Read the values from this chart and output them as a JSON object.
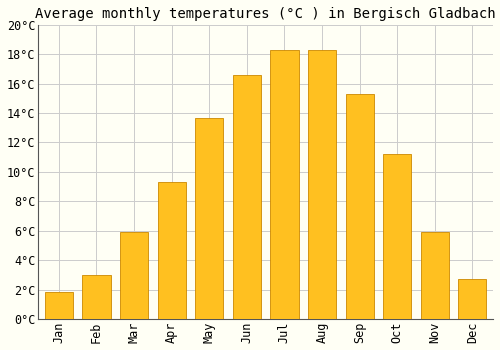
{
  "title": "Average monthly temperatures (°C ) in Bergisch Gladbach",
  "months": [
    "Jan",
    "Feb",
    "Mar",
    "Apr",
    "May",
    "Jun",
    "Jul",
    "Aug",
    "Sep",
    "Oct",
    "Nov",
    "Dec"
  ],
  "values": [
    1.8,
    3.0,
    5.9,
    9.3,
    13.7,
    16.6,
    18.3,
    18.3,
    15.3,
    11.2,
    5.9,
    2.7
  ],
  "bar_color": "#FFC020",
  "bar_edge_color": "#CC8800",
  "ylim": [
    0,
    20
  ],
  "ytick_step": 2,
  "background_color": "#FFFFF5",
  "grid_color": "#CCCCCC",
  "title_fontsize": 10,
  "tick_fontsize": 8.5,
  "font_family": "monospace"
}
